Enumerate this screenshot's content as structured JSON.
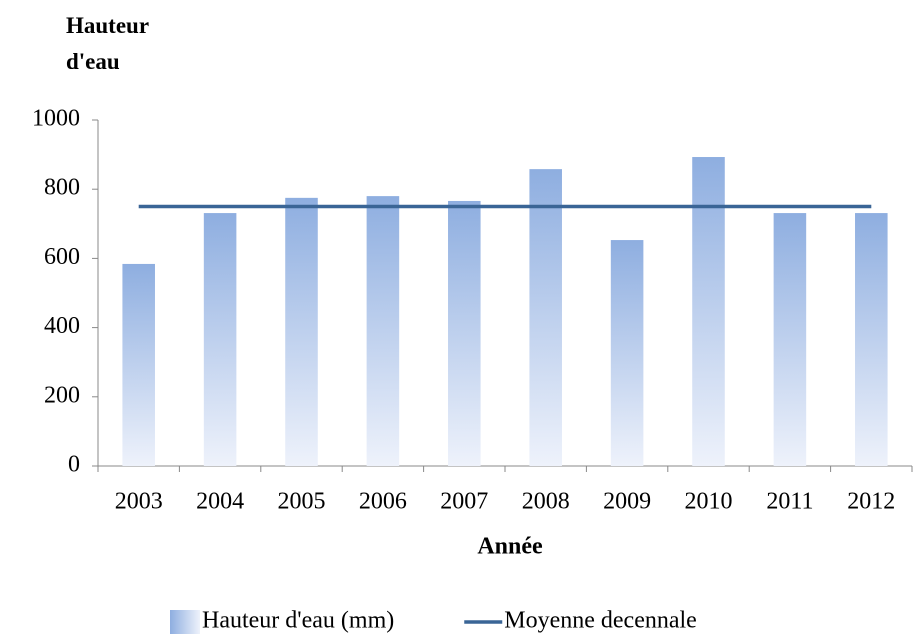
{
  "chart_data": {
    "type": "bar",
    "y_label": "Hauteur d'eau",
    "x_label": "Année",
    "categories": [
      "2003",
      "2004",
      "2005",
      "2006",
      "2007",
      "2008",
      "2009",
      "2010",
      "2011",
      "2012"
    ],
    "series": [
      {
        "name": "Hauteur d'eau (mm)",
        "type": "bar",
        "color": "#8eaee0",
        "values": [
          584,
          731,
          775,
          780,
          766,
          858,
          653,
          893,
          731,
          731
        ]
      },
      {
        "name": "Moyenne decennale",
        "type": "line",
        "color": "#3a6596",
        "values": [
          750,
          750,
          750,
          750,
          750,
          750,
          750,
          750,
          750,
          750
        ]
      }
    ],
    "ylim": [
      0,
      1000
    ],
    "yticks": [
      0,
      200,
      400,
      600,
      800,
      1000
    ],
    "grid": false,
    "legend": "bottom"
  }
}
